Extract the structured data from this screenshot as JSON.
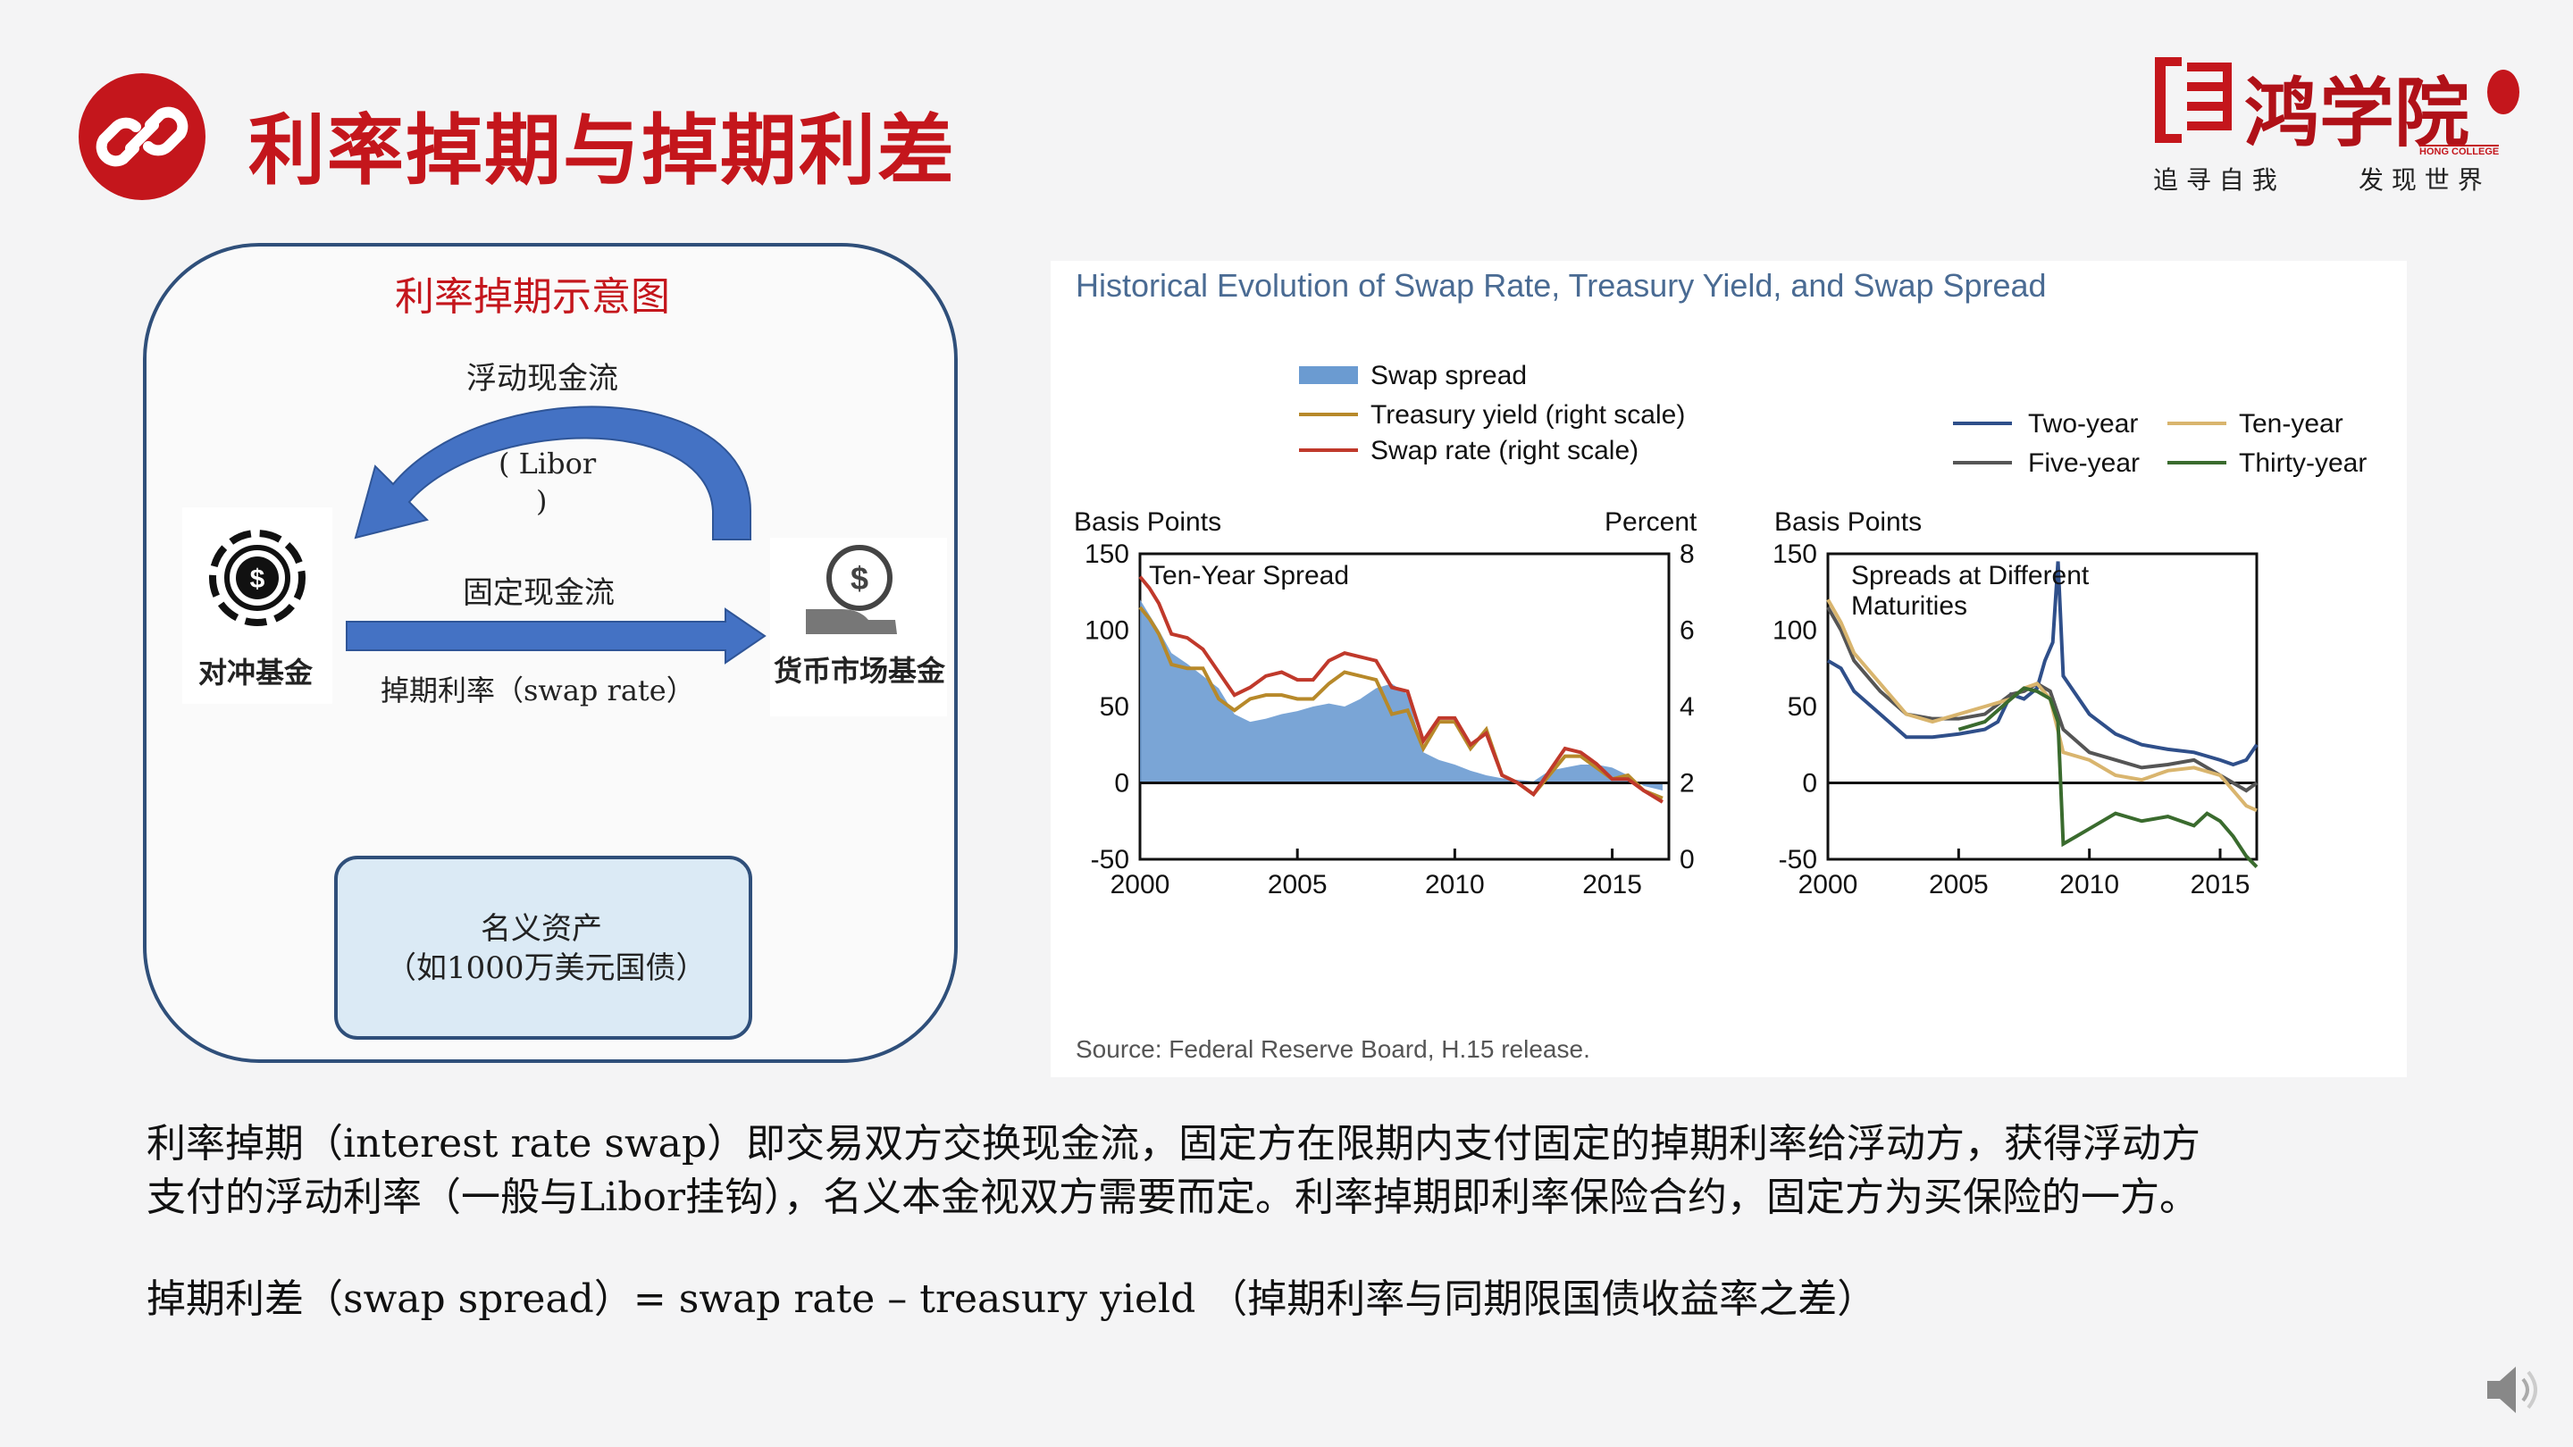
{
  "slide": {
    "title": "利率掉期与掉期利差",
    "colors": {
      "brand_red": "#c4161c",
      "frame_blue": "#2f4f7a",
      "arrow_blue": "#4472c4"
    }
  },
  "logo": {
    "name": "鸿学院",
    "english": "HONG COLLEGE",
    "slogan_left": "追 寻 自 我",
    "slogan_right": "发 现 世 界"
  },
  "diagram": {
    "title": "利率掉期示意图",
    "floating_label": "浮动现金流",
    "libor_label": "( Libor",
    "libor_close": ")",
    "fixed_label": "固定现金流",
    "swap_rate_label": "掉期利率（swap rate）",
    "left_party": "对冲基金",
    "right_party": "货币市场基金",
    "notional_line1": "名义资产",
    "notional_line2": "（如1000万美元国债）"
  },
  "chart_data": [
    {
      "type": "area",
      "figure_title": "Historical Evolution of Swap Rate, Treasury Yield, and Swap Spread",
      "title": "Ten-Year Spread",
      "ylabel_left": "Basis Points",
      "ylabel_right": "Percent",
      "x_ticks": [
        "2000",
        "2005",
        "2010",
        "2015"
      ],
      "y_ticks_left": [
        "150",
        "100",
        "50",
        "0",
        "-50"
      ],
      "y_ticks_right": [
        "8",
        "6",
        "4",
        "2",
        "0"
      ],
      "xlim": [
        2000,
        2016.8
      ],
      "ylim_left": [
        -50,
        150
      ],
      "ylim_right": [
        0,
        8
      ],
      "legend": [
        "Swap spread",
        "Treasury yield (right scale)",
        "Swap rate (right scale)"
      ],
      "series": [
        {
          "name": "Swap spread",
          "axis": "left",
          "color": "#6b9bd1",
          "x": [
            2000,
            2000.3,
            2000.6,
            2001,
            2001.5,
            2002,
            2002.5,
            2003,
            2003.5,
            2004,
            2004.5,
            2005,
            2005.5,
            2006,
            2006.5,
            2007,
            2007.5,
            2008,
            2008.5,
            2009,
            2009.5,
            2010,
            2010.5,
            2011,
            2011.5,
            2012,
            2012.5,
            2013,
            2013.5,
            2014,
            2014.5,
            2015,
            2015.5,
            2016,
            2016.6
          ],
          "values": [
            120,
            110,
            100,
            85,
            78,
            70,
            62,
            45,
            40,
            42,
            45,
            47,
            50,
            52,
            50,
            55,
            62,
            65,
            58,
            20,
            15,
            12,
            8,
            5,
            3,
            2,
            1,
            8,
            10,
            12,
            12,
            10,
            5,
            -2,
            -5
          ]
        },
        {
          "name": "Treasury yield (right scale)",
          "axis": "right",
          "color": "#b7892a",
          "x": [
            2000,
            2000.3,
            2000.6,
            2001,
            2001.5,
            2002,
            2002.5,
            2003,
            2003.5,
            2004,
            2004.5,
            2005,
            2005.5,
            2006,
            2006.5,
            2007,
            2007.5,
            2008,
            2008.5,
            2009,
            2009.5,
            2010,
            2010.5,
            2011,
            2011.5,
            2012,
            2012.5,
            2013,
            2013.5,
            2014,
            2014.5,
            2015,
            2015.5,
            2016,
            2016.6
          ],
          "values": [
            6.6,
            6.3,
            5.9,
            5.1,
            5.0,
            5.0,
            4.2,
            3.9,
            4.2,
            4.3,
            4.3,
            4.2,
            4.2,
            4.6,
            4.9,
            4.8,
            4.7,
            3.8,
            3.9,
            2.9,
            3.6,
            3.6,
            2.9,
            3.4,
            2.2,
            2.0,
            1.7,
            2.2,
            2.7,
            2.7,
            2.4,
            2.1,
            2.2,
            1.8,
            1.6
          ]
        },
        {
          "name": "Swap rate (right scale)",
          "axis": "right",
          "color": "#c0392b",
          "x": [
            2000,
            2000.3,
            2000.6,
            2001,
            2001.5,
            2002,
            2002.5,
            2003,
            2003.5,
            2004,
            2004.5,
            2005,
            2005.5,
            2006,
            2006.5,
            2007,
            2007.5,
            2008,
            2008.5,
            2009,
            2009.5,
            2010,
            2010.5,
            2011,
            2011.5,
            2012,
            2012.5,
            2013,
            2013.5,
            2014,
            2014.5,
            2015,
            2015.5,
            2016,
            2016.6
          ],
          "values": [
            7.4,
            7.1,
            6.7,
            5.9,
            5.8,
            5.5,
            4.9,
            4.3,
            4.5,
            4.8,
            4.9,
            4.7,
            4.7,
            5.2,
            5.4,
            5.3,
            5.2,
            4.5,
            4.4,
            3.1,
            3.7,
            3.7,
            3.0,
            3.3,
            2.2,
            2.0,
            1.7,
            2.3,
            2.9,
            2.8,
            2.5,
            2.1,
            2.1,
            1.8,
            1.5
          ]
        }
      ]
    },
    {
      "type": "line",
      "title": "Spreads at Different Maturities",
      "ylabel": "Basis Points",
      "x_ticks": [
        "2000",
        "2005",
        "2010",
        "2015"
      ],
      "y_ticks": [
        "150",
        "100",
        "50",
        "0",
        "-50"
      ],
      "xlim": [
        2000,
        2016.4
      ],
      "ylim": [
        -50,
        150
      ],
      "legend": [
        "Two-year",
        "Five-year",
        "Ten-year",
        "Thirty-year"
      ],
      "series": [
        {
          "name": "Two-year",
          "color": "#2f4f8a",
          "x": [
            2000,
            2000.5,
            2001,
            2002,
            2003,
            2004,
            2005,
            2006,
            2006.5,
            2007,
            2007.5,
            2008,
            2008.3,
            2008.6,
            2008.8,
            2009,
            2010,
            2011,
            2012,
            2013,
            2014,
            2015,
            2015.5,
            2016,
            2016.4
          ],
          "values": [
            80,
            75,
            60,
            45,
            30,
            30,
            32,
            35,
            40,
            58,
            55,
            62,
            80,
            92,
            145,
            70,
            45,
            32,
            25,
            22,
            20,
            15,
            12,
            15,
            25
          ]
        },
        {
          "name": "Five-year",
          "color": "#555555",
          "x": [
            2000,
            2000.5,
            2001,
            2002,
            2003,
            2004,
            2005,
            2006,
            2007,
            2007.5,
            2008,
            2008.5,
            2009,
            2010,
            2011,
            2012,
            2013,
            2014,
            2015,
            2015.5,
            2016,
            2016.4
          ],
          "values": [
            115,
            100,
            80,
            60,
            45,
            42,
            42,
            45,
            58,
            60,
            65,
            60,
            35,
            20,
            15,
            10,
            12,
            15,
            5,
            0,
            -5,
            0
          ]
        },
        {
          "name": "Ten-year",
          "color": "#d9b56e",
          "x": [
            2000,
            2000.5,
            2001,
            2002,
            2003,
            2004,
            2005,
            2006,
            2007,
            2007.5,
            2008,
            2008.5,
            2009,
            2010,
            2011,
            2012,
            2013,
            2014,
            2015,
            2015.5,
            2016,
            2016.4
          ],
          "values": [
            120,
            105,
            85,
            65,
            45,
            40,
            45,
            50,
            55,
            62,
            65,
            55,
            20,
            15,
            5,
            2,
            8,
            10,
            5,
            -5,
            -15,
            -18
          ]
        },
        {
          "name": "Thirty-year",
          "color": "#3a6b2e",
          "x": [
            2005,
            2006,
            2007,
            2007.5,
            2008,
            2008.5,
            2008.8,
            2009,
            2009.5,
            2010,
            2011,
            2012,
            2013,
            2014,
            2014.5,
            2015,
            2015.5,
            2016,
            2016.4
          ],
          "values": [
            35,
            40,
            55,
            62,
            60,
            55,
            40,
            -40,
            -35,
            -30,
            -20,
            -25,
            -22,
            -28,
            -20,
            -25,
            -35,
            -48,
            -55
          ]
        }
      ]
    }
  ],
  "chart_source": "Source: Federal Reserve Board, H.15 release.",
  "body": {
    "para_line1": "利率掉期（interest rate swap）即交易双方交换现金流，固定方在限期内支付固定的掉期利率给浮动方，获得浮动方",
    "para_line2": "支付的浮动利率（一般与Libor挂钩），名义本金视双方需要而定。利率掉期即利率保险合约，固定方为买保险的一方。",
    "formula": "掉期利差（swap spread）= swap rate – treasury yield （掉期利率与同期限国债收益率之差）"
  },
  "audio": {
    "icon": "speaker-icon"
  }
}
